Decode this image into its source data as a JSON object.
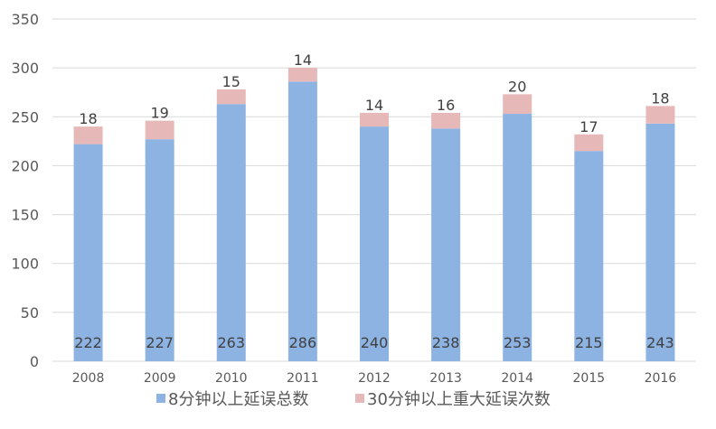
{
  "chart_data": {
    "type": "bar",
    "stacked": true,
    "categories": [
      "2008",
      "2009",
      "2010",
      "2011",
      "2012",
      "2013",
      "2014",
      "2015",
      "2016"
    ],
    "series": [
      {
        "name": "8分钟以上延误总数",
        "values": [
          222,
          227,
          263,
          286,
          240,
          238,
          253,
          215,
          243
        ],
        "color": "#8db3e2"
      },
      {
        "name": "30分钟以上重大延误次数",
        "values": [
          18,
          19,
          15,
          14,
          14,
          16,
          20,
          17,
          18
        ],
        "color": "#e6b9b8"
      }
    ],
    "ylim": [
      0,
      350
    ],
    "yticks": [
      0,
      50,
      100,
      150,
      200,
      250,
      300,
      350
    ],
    "grid": true,
    "legend": "bottom"
  }
}
